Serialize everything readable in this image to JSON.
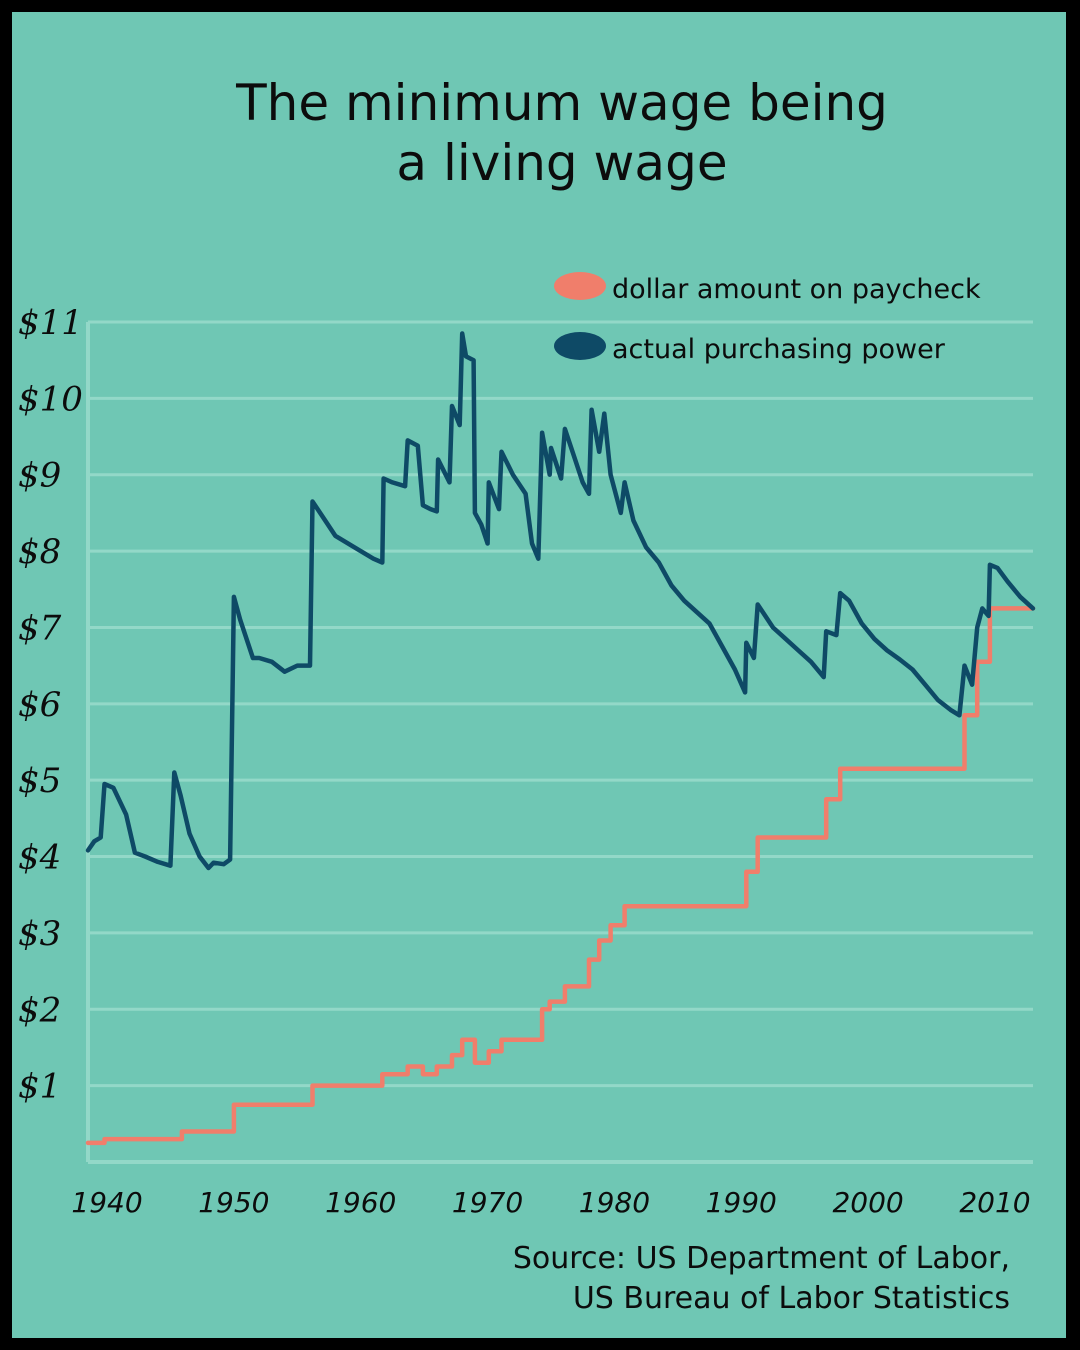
{
  "title_lines": [
    "The minimum wage being",
    "a living wage"
  ],
  "source_lines": [
    "Source: US Department of Labor,",
    "US Bureau of Labor Statistics"
  ],
  "colors": {
    "background": "#6fc7b4",
    "frame": "#000000",
    "grid": "#93d8c8",
    "nominal": "#f07e6b",
    "real": "#0e4a66"
  },
  "chart_data": {
    "type": "line",
    "title": "The minimum wage being a living wage",
    "xlim": [
      1938.5,
      2013
    ],
    "ylim": [
      0,
      11
    ],
    "grid": true,
    "legend_placement": "top-right",
    "x_ticks": [
      1940,
      1950,
      1960,
      1970,
      1980,
      1990,
      2000,
      2010
    ],
    "x_tick_labels": [
      "1940",
      "1950",
      "1960",
      "1970",
      "1980",
      "1990",
      "2000",
      "2010"
    ],
    "y_ticks": [
      1,
      2,
      3,
      4,
      5,
      6,
      7,
      8,
      9,
      10,
      11
    ],
    "y_tick_labels": [
      "$1",
      "$2",
      "$3",
      "$4",
      "$5",
      "$6",
      "$7",
      "$8",
      "$9",
      "$10",
      "$11"
    ],
    "series": [
      {
        "name": "dollar amount on paycheck",
        "color_key": "nominal",
        "step": true,
        "points": [
          [
            1938.5,
            0.25
          ],
          [
            1939.8,
            0.3
          ],
          [
            1945.9,
            0.4
          ],
          [
            1950.0,
            0.75
          ],
          [
            1956.2,
            1.0
          ],
          [
            1961.7,
            1.15
          ],
          [
            1963.7,
            1.25
          ],
          [
            1964.9,
            1.15
          ],
          [
            1966.0,
            1.25
          ],
          [
            1967.2,
            1.4
          ],
          [
            1968.0,
            1.6
          ],
          [
            1969.0,
            1.3
          ],
          [
            1970.1,
            1.45
          ],
          [
            1971.1,
            1.6
          ],
          [
            1974.3,
            2.0
          ],
          [
            1974.9,
            2.1
          ],
          [
            1976.1,
            2.3
          ],
          [
            1978.0,
            2.65
          ],
          [
            1978.8,
            2.9
          ],
          [
            1979.7,
            3.1
          ],
          [
            1980.8,
            3.35
          ],
          [
            1990.4,
            3.8
          ],
          [
            1991.3,
            4.25
          ],
          [
            1996.7,
            4.75
          ],
          [
            1997.8,
            5.15
          ],
          [
            2007.6,
            5.85
          ],
          [
            2008.6,
            6.55
          ],
          [
            2009.6,
            7.25
          ],
          [
            2013.0,
            7.25
          ]
        ]
      },
      {
        "name": "actual purchasing power",
        "color_key": "real",
        "step": false,
        "points": [
          [
            1938.5,
            4.08
          ],
          [
            1939.0,
            4.2
          ],
          [
            1939.5,
            4.25
          ],
          [
            1939.8,
            4.95
          ],
          [
            1940.5,
            4.9
          ],
          [
            1941.5,
            4.55
          ],
          [
            1942.2,
            4.05
          ],
          [
            1943.0,
            4.0
          ],
          [
            1944.0,
            3.93
          ],
          [
            1945.0,
            3.88
          ],
          [
            1945.3,
            5.1
          ],
          [
            1945.8,
            4.8
          ],
          [
            1946.5,
            4.3
          ],
          [
            1947.3,
            4.0
          ],
          [
            1948.0,
            3.85
          ],
          [
            1948.4,
            3.92
          ],
          [
            1949.2,
            3.9
          ],
          [
            1949.7,
            3.96
          ],
          [
            1950.0,
            7.4
          ],
          [
            1950.5,
            7.1
          ],
          [
            1951.5,
            6.6
          ],
          [
            1952.0,
            6.6
          ],
          [
            1953.0,
            6.55
          ],
          [
            1954.0,
            6.42
          ],
          [
            1955.0,
            6.5
          ],
          [
            1956.0,
            6.5
          ],
          [
            1956.2,
            8.65
          ],
          [
            1957.0,
            8.45
          ],
          [
            1958.0,
            8.2
          ],
          [
            1959.5,
            8.05
          ],
          [
            1961.0,
            7.9
          ],
          [
            1961.7,
            7.85
          ],
          [
            1961.8,
            8.95
          ],
          [
            1962.5,
            8.9
          ],
          [
            1963.5,
            8.85
          ],
          [
            1963.7,
            9.45
          ],
          [
            1964.5,
            9.38
          ],
          [
            1964.9,
            8.6
          ],
          [
            1965.5,
            8.55
          ],
          [
            1966.0,
            8.52
          ],
          [
            1966.1,
            9.2
          ],
          [
            1967.0,
            8.9
          ],
          [
            1967.2,
            9.9
          ],
          [
            1967.8,
            9.65
          ],
          [
            1968.0,
            10.85
          ],
          [
            1968.3,
            10.55
          ],
          [
            1968.9,
            10.5
          ],
          [
            1969.0,
            8.5
          ],
          [
            1969.5,
            8.35
          ],
          [
            1970.0,
            8.1
          ],
          [
            1970.1,
            8.9
          ],
          [
            1970.9,
            8.55
          ],
          [
            1971.1,
            9.3
          ],
          [
            1972.0,
            9.0
          ],
          [
            1973.0,
            8.75
          ],
          [
            1973.5,
            8.1
          ],
          [
            1974.0,
            7.9
          ],
          [
            1974.3,
            9.55
          ],
          [
            1974.9,
            9.0
          ],
          [
            1975.0,
            9.35
          ],
          [
            1975.8,
            8.95
          ],
          [
            1976.1,
            9.6
          ],
          [
            1976.8,
            9.25
          ],
          [
            1977.5,
            8.9
          ],
          [
            1978.0,
            8.75
          ],
          [
            1978.2,
            9.85
          ],
          [
            1978.8,
            9.3
          ],
          [
            1979.2,
            9.8
          ],
          [
            1979.7,
            9.0
          ],
          [
            1980.5,
            8.5
          ],
          [
            1980.8,
            8.9
          ],
          [
            1981.5,
            8.4
          ],
          [
            1982.5,
            8.05
          ],
          [
            1983.5,
            7.85
          ],
          [
            1984.5,
            7.55
          ],
          [
            1985.5,
            7.35
          ],
          [
            1986.5,
            7.2
          ],
          [
            1987.5,
            7.05
          ],
          [
            1988.5,
            6.75
          ],
          [
            1989.5,
            6.45
          ],
          [
            1990.3,
            6.15
          ],
          [
            1990.4,
            6.8
          ],
          [
            1991.0,
            6.6
          ],
          [
            1991.3,
            7.3
          ],
          [
            1992.5,
            7.0
          ],
          [
            1993.5,
            6.85
          ],
          [
            1994.5,
            6.7
          ],
          [
            1995.5,
            6.55
          ],
          [
            1996.5,
            6.35
          ],
          [
            1996.7,
            6.95
          ],
          [
            1997.5,
            6.9
          ],
          [
            1997.8,
            7.45
          ],
          [
            1998.5,
            7.35
          ],
          [
            1999.5,
            7.05
          ],
          [
            2000.5,
            6.85
          ],
          [
            2001.5,
            6.7
          ],
          [
            2002.5,
            6.58
          ],
          [
            2003.5,
            6.45
          ],
          [
            2004.5,
            6.25
          ],
          [
            2005.5,
            6.05
          ],
          [
            2006.5,
            5.92
          ],
          [
            2007.2,
            5.85
          ],
          [
            2007.6,
            6.5
          ],
          [
            2008.2,
            6.25
          ],
          [
            2008.6,
            7.0
          ],
          [
            2009.0,
            7.25
          ],
          [
            2009.5,
            7.15
          ],
          [
            2009.6,
            7.82
          ],
          [
            2010.2,
            7.78
          ],
          [
            2011.0,
            7.6
          ],
          [
            2012.0,
            7.4
          ],
          [
            2013.0,
            7.25
          ]
        ]
      }
    ]
  }
}
